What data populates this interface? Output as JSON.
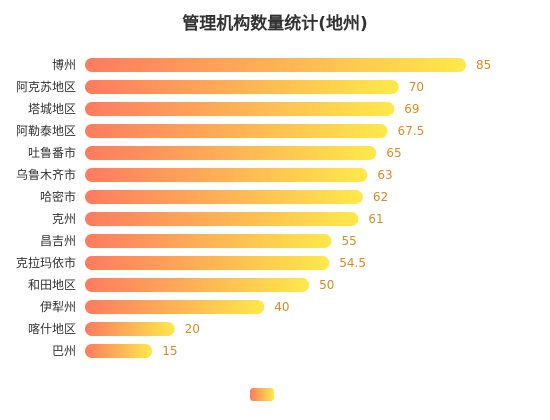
{
  "chart_data": {
    "type": "bar",
    "orientation": "horizontal",
    "title": "管理机构数量统计(地州)",
    "categories": [
      "博州",
      "阿克苏地区",
      "塔城地区",
      "阿勒泰地区",
      "吐鲁番市",
      "乌鲁木齐市",
      "哈密市",
      "克州",
      "昌吉州",
      "克拉玛依市",
      "和田地区",
      "伊犁州",
      "喀什地区",
      "巴州"
    ],
    "values": [
      85,
      70,
      69,
      67.5,
      65,
      63,
      62,
      61,
      55,
      54.5,
      50,
      40,
      20,
      15
    ],
    "value_labels": [
      "85",
      "70",
      "69",
      "67.5",
      "65",
      "63",
      "62",
      "61",
      "55",
      "54.5",
      "50",
      "40",
      "20",
      "15"
    ],
    "xlabel": "",
    "ylabel": "",
    "xlim": [
      0,
      100
    ],
    "grid": false,
    "legend": "bottom-center",
    "colors": {
      "gradient_start": "#ff7b60",
      "gradient_end": "#ffe94a",
      "value_text": "#e08a1e",
      "category_text": "#333333"
    }
  }
}
